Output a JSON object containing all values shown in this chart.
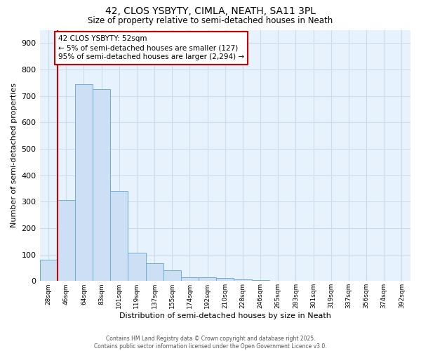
{
  "title1": "42, CLOS YSBYTY, CIMLA, NEATH, SA11 3PL",
  "title2": "Size of property relative to semi-detached houses in Neath",
  "xlabel": "Distribution of semi-detached houses by size in Neath",
  "ylabel": "Number of semi-detached properties",
  "bar_categories": [
    "28sqm",
    "46sqm",
    "64sqm",
    "83sqm",
    "101sqm",
    "119sqm",
    "137sqm",
    "155sqm",
    "174sqm",
    "192sqm",
    "210sqm",
    "228sqm",
    "246sqm",
    "265sqm",
    "283sqm",
    "301sqm",
    "319sqm",
    "337sqm",
    "356sqm",
    "374sqm",
    "392sqm"
  ],
  "bar_values": [
    80,
    307,
    743,
    726,
    340,
    108,
    68,
    40,
    15,
    13,
    12,
    5,
    4,
    0,
    0,
    0,
    0,
    0,
    0,
    0,
    0
  ],
  "bar_color": "#ccdff5",
  "bar_edge_color": "#6aaed6",
  "vline_color": "#cc0000",
  "annotation_text": "42 CLOS YSBYTY: 52sqm\n← 5% of semi-detached houses are smaller (127)\n95% of semi-detached houses are larger (2,294) →",
  "annotation_box_color": "#ffffff",
  "annotation_box_edge": "#cc0000",
  "plot_bg_color": "#e8f2fc",
  "fig_bg_color": "#ffffff",
  "grid_color": "#c8ddf0",
  "footer_text": "Contains HM Land Registry data © Crown copyright and database right 2025.\nContains public sector information licensed under the Open Government Licence v3.0.",
  "ylim": [
    0,
    950
  ],
  "yticks": [
    0,
    100,
    200,
    300,
    400,
    500,
    600,
    700,
    800,
    900
  ]
}
